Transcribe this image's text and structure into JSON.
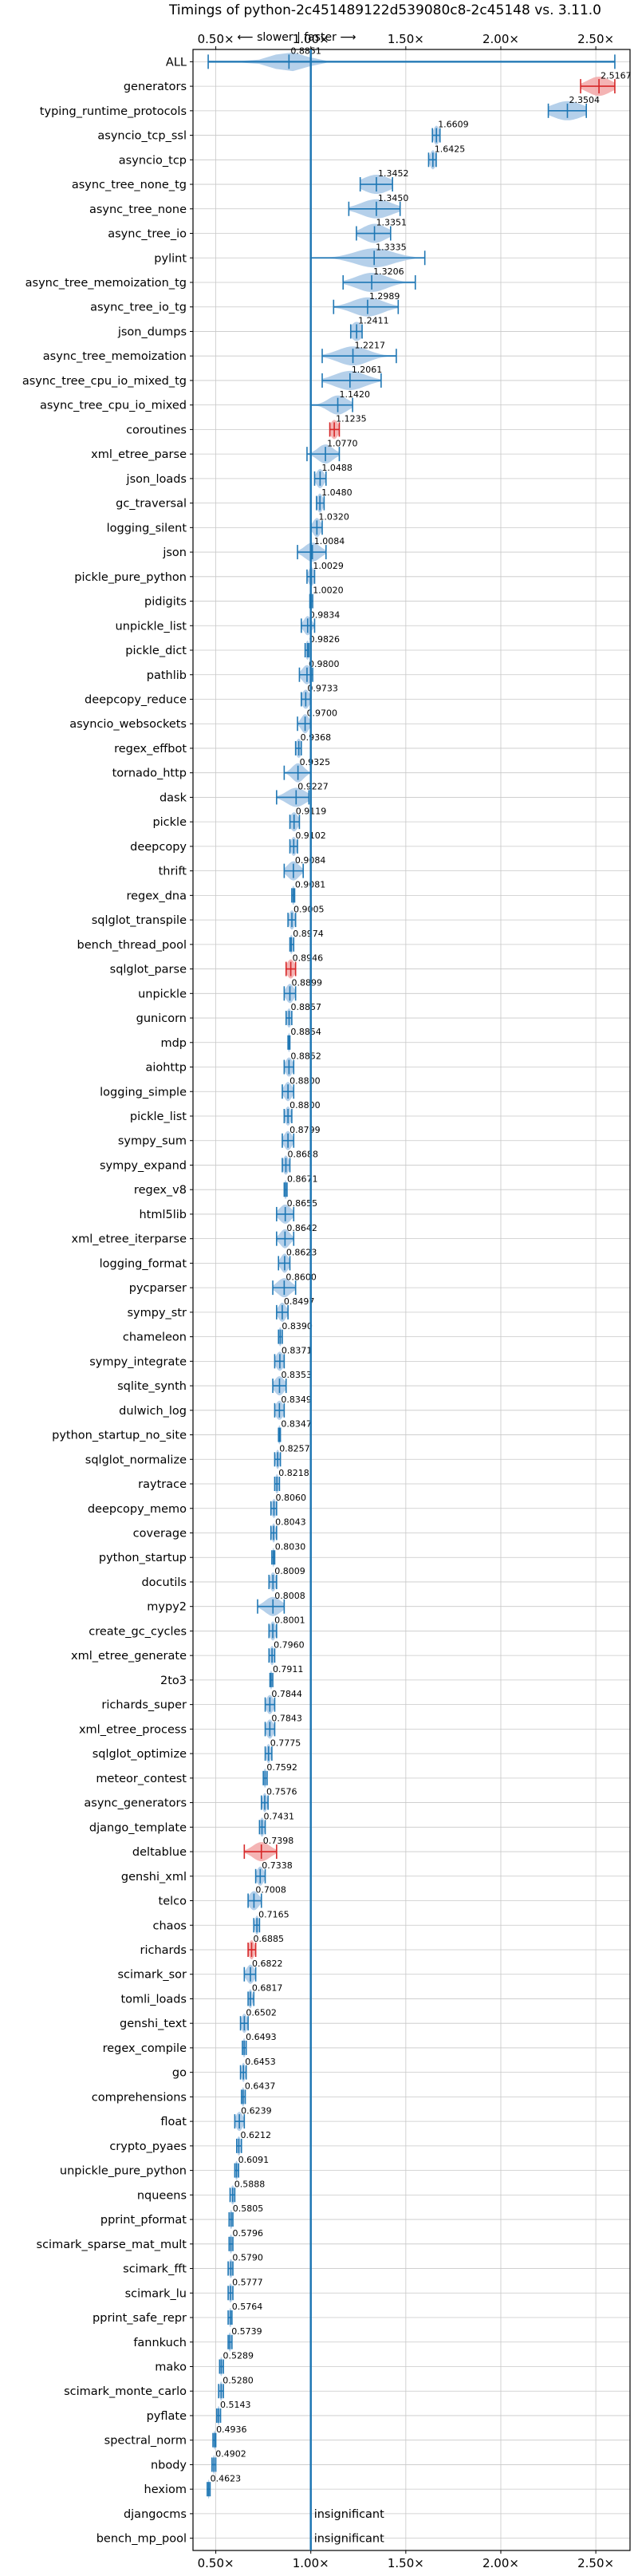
{
  "chart_data": {
    "type": "violin",
    "title": "Timings of python-2c451489122d539080c8-2c45148 vs. 3.11.0",
    "annotation": "⟵ slower | faster ⟶",
    "xlim": [
      0.38,
      2.68
    ],
    "x_ticks": [
      0.5,
      1.0,
      1.5,
      2.0,
      2.5
    ],
    "x_tick_labels": [
      "0.50×",
      "1.00×",
      "1.50×",
      "2.00×",
      "2.50×"
    ],
    "reference_line": 1.0,
    "grid": true,
    "colors": {
      "faster": "#1f77b4",
      "slower": "#d62728",
      "violin_faster": "#a8c8e6",
      "violin_slower": "#f2a7a7"
    },
    "insignificant_label": "insignificant",
    "benchmarks": [
      {
        "name": "ALL",
        "value": 0.8851,
        "label": "0.8851",
        "lo": 0.46,
        "hi": 2.6,
        "spread": 0.09
      },
      {
        "name": "generators",
        "value": 2.5167,
        "label": "2.5167",
        "lo": 2.42,
        "hi": 2.6,
        "spread": 0.06
      },
      {
        "name": "typing_runtime_protocols",
        "value": 2.3504,
        "label": "2.3504",
        "lo": 2.25,
        "hi": 2.45,
        "spread": 0.08
      },
      {
        "name": "asyncio_tcp_ssl",
        "value": 1.6609,
        "label": "1.6609",
        "lo": 1.64,
        "hi": 1.68,
        "spread": 0.015
      },
      {
        "name": "asyncio_tcp",
        "value": 1.6425,
        "label": "1.6425",
        "lo": 1.62,
        "hi": 1.66,
        "spread": 0.015
      },
      {
        "name": "async_tree_none_tg",
        "value": 1.3452,
        "label": "1.3452",
        "lo": 1.26,
        "hi": 1.43,
        "spread": 0.07
      },
      {
        "name": "async_tree_none",
        "value": 1.345,
        "label": "1.3450",
        "lo": 1.2,
        "hi": 1.47,
        "spread": 0.08
      },
      {
        "name": "async_tree_io",
        "value": 1.3351,
        "label": "1.3351",
        "lo": 1.24,
        "hi": 1.42,
        "spread": 0.06
      },
      {
        "name": "pylint",
        "value": 1.3335,
        "label": "1.3335",
        "lo": 1.0,
        "hi": 1.6,
        "spread": 0.1
      },
      {
        "name": "async_tree_memoization_tg",
        "value": 1.3206,
        "label": "1.3206",
        "lo": 1.17,
        "hi": 1.55,
        "spread": 0.08
      },
      {
        "name": "async_tree_io_tg",
        "value": 1.2989,
        "label": "1.2989",
        "lo": 1.12,
        "hi": 1.46,
        "spread": 0.08
      },
      {
        "name": "json_dumps",
        "value": 1.2411,
        "label": "1.2411",
        "lo": 1.21,
        "hi": 1.27,
        "spread": 0.03
      },
      {
        "name": "async_tree_memoization",
        "value": 1.2217,
        "label": "1.2217",
        "lo": 1.06,
        "hi": 1.45,
        "spread": 0.08
      },
      {
        "name": "async_tree_cpu_io_mixed_tg",
        "value": 1.2061,
        "label": "1.2061",
        "lo": 1.06,
        "hi": 1.37,
        "spread": 0.08
      },
      {
        "name": "async_tree_cpu_io_mixed",
        "value": 1.142,
        "label": "1.1420",
        "lo": 1.0,
        "hi": 1.22,
        "spread": 0.05
      },
      {
        "name": "coroutines",
        "value": 1.1235,
        "label": "1.1235",
        "lo": 1.1,
        "hi": 1.15,
        "spread": 0.02
      },
      {
        "name": "xml_etree_parse",
        "value": 1.077,
        "label": "1.0770",
        "lo": 0.98,
        "hi": 1.15,
        "spread": 0.04
      },
      {
        "name": "json_loads",
        "value": 1.0488,
        "label": "1.0488",
        "lo": 1.02,
        "hi": 1.08,
        "spread": 0.02
      },
      {
        "name": "gc_traversal",
        "value": 1.048,
        "label": "1.0480",
        "lo": 1.03,
        "hi": 1.07,
        "spread": 0.015
      },
      {
        "name": "logging_silent",
        "value": 1.032,
        "label": "1.0320",
        "lo": 1.0,
        "hi": 1.06,
        "spread": 0.02
      },
      {
        "name": "json",
        "value": 1.0084,
        "label": "1.0084",
        "lo": 0.93,
        "hi": 1.08,
        "spread": 0.04
      },
      {
        "name": "pickle_pure_python",
        "value": 1.0029,
        "label": "1.0029",
        "lo": 0.98,
        "hi": 1.02,
        "spread": 0.015
      },
      {
        "name": "pidigits",
        "value": 1.002,
        "label": "1.0020",
        "lo": 0.995,
        "hi": 1.01,
        "spread": 0.005
      },
      {
        "name": "unpickle_list",
        "value": 0.9834,
        "label": "0.9834",
        "lo": 0.95,
        "hi": 1.02,
        "spread": 0.02
      },
      {
        "name": "pickle_dict",
        "value": 0.9826,
        "label": "0.9826",
        "lo": 0.97,
        "hi": 0.99,
        "spread": 0.01
      },
      {
        "name": "pathlib",
        "value": 0.98,
        "label": "0.9800",
        "lo": 0.94,
        "hi": 1.01,
        "spread": 0.025
      },
      {
        "name": "deepcopy_reduce",
        "value": 0.9733,
        "label": "0.9733",
        "lo": 0.95,
        "hi": 1.0,
        "spread": 0.02
      },
      {
        "name": "asyncio_websockets",
        "value": 0.97,
        "label": "0.9700",
        "lo": 0.93,
        "hi": 1.0,
        "spread": 0.02
      },
      {
        "name": "regex_effbot",
        "value": 0.9368,
        "label": "0.9368",
        "lo": 0.92,
        "hi": 0.95,
        "spread": 0.015
      },
      {
        "name": "tornado_http",
        "value": 0.9325,
        "label": "0.9325",
        "lo": 0.86,
        "hi": 1.0,
        "spread": 0.03
      },
      {
        "name": "dask",
        "value": 0.9227,
        "label": "0.9227",
        "lo": 0.82,
        "hi": 0.99,
        "spread": 0.05
      },
      {
        "name": "pickle",
        "value": 0.9119,
        "label": "0.9119",
        "lo": 0.89,
        "hi": 0.94,
        "spread": 0.02
      },
      {
        "name": "deepcopy",
        "value": 0.9102,
        "label": "0.9102",
        "lo": 0.89,
        "hi": 0.93,
        "spread": 0.015
      },
      {
        "name": "thrift",
        "value": 0.9084,
        "label": "0.9084",
        "lo": 0.86,
        "hi": 0.96,
        "spread": 0.03
      },
      {
        "name": "regex_dna",
        "value": 0.9081,
        "label": "0.9081",
        "lo": 0.9,
        "hi": 0.915,
        "spread": 0.008
      },
      {
        "name": "sqlglot_transpile",
        "value": 0.9005,
        "label": "0.9005",
        "lo": 0.88,
        "hi": 0.92,
        "spread": 0.015
      },
      {
        "name": "bench_thread_pool",
        "value": 0.8974,
        "label": "0.8974",
        "lo": 0.89,
        "hi": 0.91,
        "spread": 0.008
      },
      {
        "name": "sqlglot_parse",
        "value": 0.8946,
        "label": "0.8946",
        "lo": 0.87,
        "hi": 0.92,
        "spread": 0.02
      },
      {
        "name": "unpickle",
        "value": 0.8899,
        "label": "0.8899",
        "lo": 0.86,
        "hi": 0.92,
        "spread": 0.02
      },
      {
        "name": "gunicorn",
        "value": 0.8857,
        "label": "0.8857",
        "lo": 0.87,
        "hi": 0.9,
        "spread": 0.012
      },
      {
        "name": "mdp",
        "value": 0.8854,
        "label": "0.8854",
        "lo": 0.88,
        "hi": 0.89,
        "spread": 0.006
      },
      {
        "name": "aiohttp",
        "value": 0.8852,
        "label": "0.8852",
        "lo": 0.86,
        "hi": 0.91,
        "spread": 0.018
      },
      {
        "name": "logging_simple",
        "value": 0.88,
        "label": "0.8800",
        "lo": 0.85,
        "hi": 0.91,
        "spread": 0.02
      },
      {
        "name": "pickle_list",
        "value": 0.88,
        "label": "0.8800",
        "lo": 0.86,
        "hi": 0.9,
        "spread": 0.015
      },
      {
        "name": "sympy_sum",
        "value": 0.8799,
        "label": "0.8799",
        "lo": 0.85,
        "hi": 0.91,
        "spread": 0.02
      },
      {
        "name": "sympy_expand",
        "value": 0.8688,
        "label": "0.8688",
        "lo": 0.85,
        "hi": 0.89,
        "spread": 0.015
      },
      {
        "name": "regex_v8",
        "value": 0.8671,
        "label": "0.8671",
        "lo": 0.86,
        "hi": 0.875,
        "spread": 0.007
      },
      {
        "name": "html5lib",
        "value": 0.8655,
        "label": "0.8655",
        "lo": 0.82,
        "hi": 0.91,
        "spread": 0.03
      },
      {
        "name": "xml_etree_iterparse",
        "value": 0.8642,
        "label": "0.8642",
        "lo": 0.82,
        "hi": 0.91,
        "spread": 0.025
      },
      {
        "name": "logging_format",
        "value": 0.8623,
        "label": "0.8623",
        "lo": 0.83,
        "hi": 0.89,
        "spread": 0.02
      },
      {
        "name": "pycparser",
        "value": 0.86,
        "label": "0.8600",
        "lo": 0.8,
        "hi": 0.92,
        "spread": 0.035
      },
      {
        "name": "sympy_str",
        "value": 0.8497,
        "label": "0.8497",
        "lo": 0.82,
        "hi": 0.88,
        "spread": 0.02
      },
      {
        "name": "chameleon",
        "value": 0.839,
        "label": "0.8390",
        "lo": 0.83,
        "hi": 0.85,
        "spread": 0.008
      },
      {
        "name": "sympy_integrate",
        "value": 0.8371,
        "label": "0.8371",
        "lo": 0.81,
        "hi": 0.86,
        "spread": 0.02
      },
      {
        "name": "sqlite_synth",
        "value": 0.8353,
        "label": "0.8353",
        "lo": 0.8,
        "hi": 0.87,
        "spread": 0.025
      },
      {
        "name": "dulwich_log",
        "value": 0.8349,
        "label": "0.8349",
        "lo": 0.81,
        "hi": 0.86,
        "spread": 0.02
      },
      {
        "name": "python_startup_no_site",
        "value": 0.8347,
        "label": "0.8347",
        "lo": 0.83,
        "hi": 0.84,
        "spread": 0.006
      },
      {
        "name": "sqlglot_normalize",
        "value": 0.8257,
        "label": "0.8257",
        "lo": 0.81,
        "hi": 0.84,
        "spread": 0.01
      },
      {
        "name": "raytrace",
        "value": 0.8218,
        "label": "0.8218",
        "lo": 0.81,
        "hi": 0.835,
        "spread": 0.01
      },
      {
        "name": "deepcopy_memo",
        "value": 0.806,
        "label": "0.8060",
        "lo": 0.79,
        "hi": 0.82,
        "spread": 0.012
      },
      {
        "name": "coverage",
        "value": 0.8043,
        "label": "0.8043",
        "lo": 0.79,
        "hi": 0.82,
        "spread": 0.01
      },
      {
        "name": "python_startup",
        "value": 0.803,
        "label": "0.8030",
        "lo": 0.795,
        "hi": 0.81,
        "spread": 0.006
      },
      {
        "name": "docutils",
        "value": 0.8009,
        "label": "0.8009",
        "lo": 0.78,
        "hi": 0.82,
        "spread": 0.015
      },
      {
        "name": "mypy2",
        "value": 0.8008,
        "label": "0.8008",
        "lo": 0.72,
        "hi": 0.86,
        "spread": 0.04
      },
      {
        "name": "create_gc_cycles",
        "value": 0.8001,
        "label": "0.8001",
        "lo": 0.78,
        "hi": 0.82,
        "spread": 0.015
      },
      {
        "name": "xml_etree_generate",
        "value": 0.796,
        "label": "0.7960",
        "lo": 0.78,
        "hi": 0.81,
        "spread": 0.012
      },
      {
        "name": "2to3",
        "value": 0.7911,
        "label": "0.7911",
        "lo": 0.785,
        "hi": 0.8,
        "spread": 0.006
      },
      {
        "name": "richards_super",
        "value": 0.7844,
        "label": "0.7844",
        "lo": 0.76,
        "hi": 0.81,
        "spread": 0.018
      },
      {
        "name": "xml_etree_process",
        "value": 0.7843,
        "label": "0.7843",
        "lo": 0.76,
        "hi": 0.81,
        "spread": 0.018
      },
      {
        "name": "sqlglot_optimize",
        "value": 0.7775,
        "label": "0.7775",
        "lo": 0.76,
        "hi": 0.795,
        "spread": 0.012
      },
      {
        "name": "meteor_contest",
        "value": 0.7592,
        "label": "0.7592",
        "lo": 0.75,
        "hi": 0.77,
        "spread": 0.008
      },
      {
        "name": "async_generators",
        "value": 0.7576,
        "label": "0.7576",
        "lo": 0.74,
        "hi": 0.775,
        "spread": 0.012
      },
      {
        "name": "django_template",
        "value": 0.7431,
        "label": "0.7431",
        "lo": 0.73,
        "hi": 0.76,
        "spread": 0.012
      },
      {
        "name": "deltablue",
        "value": 0.7398,
        "label": "0.7398",
        "lo": 0.65,
        "hi": 0.82,
        "spread": 0.045
      },
      {
        "name": "genshi_xml",
        "value": 0.7338,
        "label": "0.7338",
        "lo": 0.71,
        "hi": 0.76,
        "spread": 0.018
      },
      {
        "name": "telco",
        "value": 0.7008,
        "label": "0.7008",
        "lo": 0.67,
        "hi": 0.74,
        "spread": 0.025
      },
      {
        "name": "chaos",
        "value": 0.7165,
        "label": "0.7165",
        "lo": 0.7,
        "hi": 0.73,
        "spread": 0.01
      },
      {
        "name": "richards",
        "value": 0.6885,
        "label": "0.6885",
        "lo": 0.67,
        "hi": 0.71,
        "spread": 0.015
      },
      {
        "name": "scimark_sor",
        "value": 0.6822,
        "label": "0.6822",
        "lo": 0.65,
        "hi": 0.71,
        "spread": 0.02
      },
      {
        "name": "tomli_loads",
        "value": 0.6817,
        "label": "0.6817",
        "lo": 0.67,
        "hi": 0.7,
        "spread": 0.01
      },
      {
        "name": "genshi_text",
        "value": 0.6502,
        "label": "0.6502",
        "lo": 0.63,
        "hi": 0.67,
        "spread": 0.015
      },
      {
        "name": "regex_compile",
        "value": 0.6493,
        "label": "0.6493",
        "lo": 0.64,
        "hi": 0.66,
        "spread": 0.008
      },
      {
        "name": "go",
        "value": 0.6453,
        "label": "0.6453",
        "lo": 0.63,
        "hi": 0.66,
        "spread": 0.01
      },
      {
        "name": "comprehensions",
        "value": 0.6437,
        "label": "0.6437",
        "lo": 0.635,
        "hi": 0.655,
        "spread": 0.008
      },
      {
        "name": "float",
        "value": 0.6239,
        "label": "0.6239",
        "lo": 0.6,
        "hi": 0.65,
        "spread": 0.018
      },
      {
        "name": "crypto_pyaes",
        "value": 0.6212,
        "label": "0.6212",
        "lo": 0.61,
        "hi": 0.635,
        "spread": 0.01
      },
      {
        "name": "unpickle_pure_python",
        "value": 0.6091,
        "label": "0.6091",
        "lo": 0.6,
        "hi": 0.62,
        "spread": 0.008
      },
      {
        "name": "nqueens",
        "value": 0.5888,
        "label": "0.5888",
        "lo": 0.575,
        "hi": 0.6,
        "spread": 0.01
      },
      {
        "name": "pprint_pformat",
        "value": 0.5805,
        "label": "0.5805",
        "lo": 0.57,
        "hi": 0.59,
        "spread": 0.008
      },
      {
        "name": "scimark_sparse_mat_mult",
        "value": 0.5796,
        "label": "0.5796",
        "lo": 0.57,
        "hi": 0.59,
        "spread": 0.008
      },
      {
        "name": "scimark_fft",
        "value": 0.579,
        "label": "0.5790",
        "lo": 0.565,
        "hi": 0.59,
        "spread": 0.01
      },
      {
        "name": "scimark_lu",
        "value": 0.5777,
        "label": "0.5777",
        "lo": 0.565,
        "hi": 0.59,
        "spread": 0.01
      },
      {
        "name": "pprint_safe_repr",
        "value": 0.5764,
        "label": "0.5764",
        "lo": 0.565,
        "hi": 0.585,
        "spread": 0.008
      },
      {
        "name": "fannkuch",
        "value": 0.5739,
        "label": "0.5739",
        "lo": 0.565,
        "hi": 0.585,
        "spread": 0.008
      },
      {
        "name": "mako",
        "value": 0.5289,
        "label": "0.5289",
        "lo": 0.52,
        "hi": 0.54,
        "spread": 0.007
      },
      {
        "name": "scimark_monte_carlo",
        "value": 0.528,
        "label": "0.5280",
        "lo": 0.515,
        "hi": 0.54,
        "spread": 0.008
      },
      {
        "name": "pyflate",
        "value": 0.5143,
        "label": "0.5143",
        "lo": 0.505,
        "hi": 0.525,
        "spread": 0.007
      },
      {
        "name": "spectral_norm",
        "value": 0.4936,
        "label": "0.4936",
        "lo": 0.485,
        "hi": 0.5,
        "spread": 0.006
      },
      {
        "name": "nbody",
        "value": 0.4902,
        "label": "0.4902",
        "lo": 0.48,
        "hi": 0.5,
        "spread": 0.006
      },
      {
        "name": "hexiom",
        "value": 0.4623,
        "label": "0.4623",
        "lo": 0.455,
        "hi": 0.47,
        "spread": 0.005
      },
      {
        "name": "djangocms",
        "value": null,
        "label": "",
        "insignificant": true
      },
      {
        "name": "bench_mp_pool",
        "value": null,
        "label": "",
        "insignificant": true
      }
    ]
  }
}
